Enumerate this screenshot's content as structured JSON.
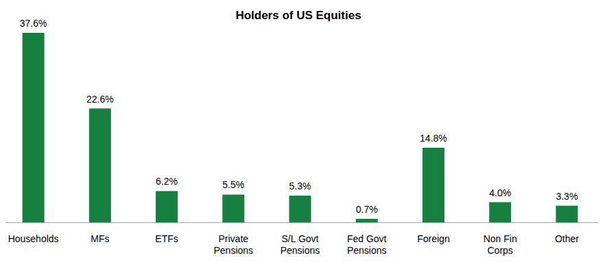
{
  "chart_data": {
    "type": "bar",
    "title": "Holders of US Equities",
    "categories": [
      "Households",
      "MFs",
      "ETFs",
      "Private Pensions",
      "S/L Govt Pensions",
      "Fed Govt Pensions",
      "Foreign",
      "Non Fin Corps",
      "Other"
    ],
    "values": [
      37.6,
      22.6,
      6.2,
      5.5,
      5.3,
      0.7,
      14.8,
      4.0,
      3.3
    ],
    "value_labels": [
      "37.6%",
      "22.6%",
      "6.2%",
      "5.5%",
      "5.3%",
      "0.7%",
      "14.8%",
      "4.0%",
      "3.3%"
    ],
    "color": "#168040",
    "grid": false,
    "data_labels": true,
    "tick_labels": "x"
  }
}
